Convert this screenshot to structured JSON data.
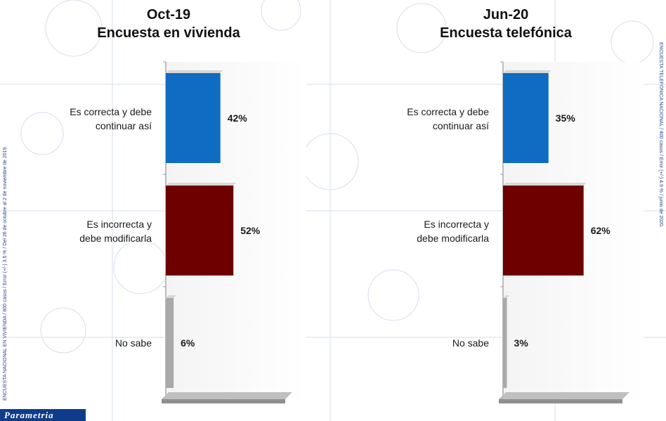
{
  "brand": "Parametria",
  "side_note_left": "ENCUESTA NACIONAL EN VIVIENDA / 800 casos / Error (+/-) 3.5 % / Del 26 de octubre al 2 de noviembre de 2019.",
  "side_note_right": "ENCUESTA TELEFÓNICA NACIONAL / 400 casos / Error (+/-) 4.9 % / junio de 2020.",
  "colors": {
    "correcta": "#0f6cc2",
    "incorrecta": "#6e0000",
    "nosabe": "#a9a9a9"
  },
  "chart_data": [
    {
      "type": "bar",
      "orientation": "horizontal",
      "title": "Oct-19",
      "subtitle": "Encuesta en vivienda",
      "categories": [
        "Es correcta y debe continuar así",
        "Es incorrecta y debe modificarla",
        "No sabe"
      ],
      "values": [
        42,
        52,
        6
      ],
      "value_labels": [
        "42%",
        "52%",
        "6%"
      ],
      "xlim": [
        0,
        100
      ]
    },
    {
      "type": "bar",
      "orientation": "horizontal",
      "title": "Jun-20",
      "subtitle": "Encuesta telefónica",
      "categories": [
        "Es correcta y debe continuar así",
        "Es incorrecta y debe modificarla",
        "No sabe"
      ],
      "values": [
        35,
        62,
        3
      ],
      "value_labels": [
        "35%",
        "62%",
        "3%"
      ],
      "xlim": [
        0,
        100
      ]
    }
  ]
}
